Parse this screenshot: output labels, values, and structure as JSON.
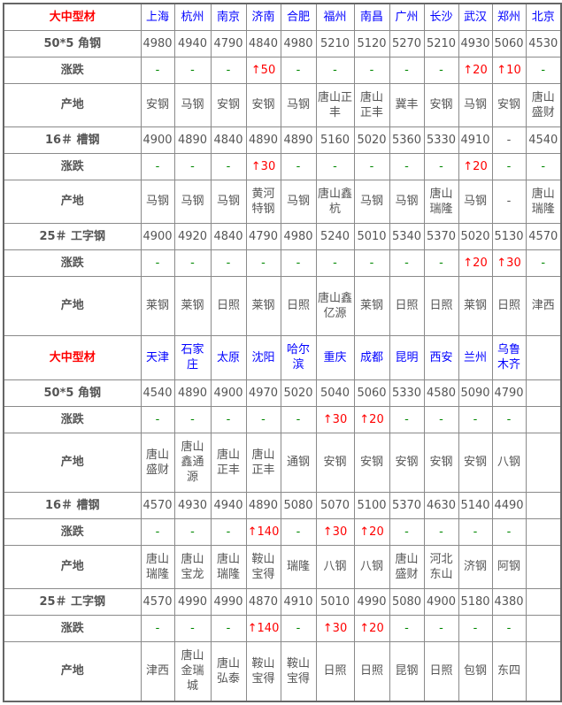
{
  "colors": {
    "city": "#0000ff",
    "corner": "#ff0000",
    "flat": "#008800",
    "up": "#ff0000",
    "text": "#555555"
  },
  "sections": [
    {
      "corner": "大中型材",
      "cities": [
        "上海",
        "杭州",
        "南京",
        "济南",
        "合肥",
        "福州",
        "南昌",
        "广州",
        "长沙",
        "武汉",
        "郑州",
        "北京"
      ],
      "products": [
        {
          "name": "50*5 角钢",
          "prices": [
            "4980",
            "4940",
            "4790",
            "4840",
            "4980",
            "5210",
            "5120",
            "5270",
            "5210",
            "4930",
            "5060",
            "4530"
          ],
          "change_label": "涨跌",
          "changes": [
            "-",
            "-",
            "-",
            "↑50",
            "-",
            "-",
            "-",
            "-",
            "-",
            "↑20",
            "↑10",
            "-"
          ],
          "origin_label": "产地",
          "origins": [
            "安钢",
            "马钢",
            "安钢",
            "安钢",
            "马钢",
            "唐山正丰",
            "唐山正丰",
            "冀丰",
            "安钢",
            "马钢",
            "安钢",
            "唐山盛财"
          ]
        },
        {
          "name": "16＃ 槽钢",
          "prices": [
            "4900",
            "4890",
            "4840",
            "4890",
            "4890",
            "5160",
            "5020",
            "5360",
            "5330",
            "4910",
            "-",
            "4540"
          ],
          "change_label": "涨跌",
          "changes": [
            "-",
            "-",
            "-",
            "↑30",
            "-",
            "-",
            "-",
            "-",
            "-",
            "↑20",
            "-",
            "-"
          ],
          "origin_label": "产地",
          "origins": [
            "马钢",
            "马钢",
            "马钢",
            "黄河特钢",
            "马钢",
            "唐山鑫杭",
            "马钢",
            "马钢",
            "唐山瑞隆",
            "马钢",
            "-",
            "唐山瑞隆"
          ]
        },
        {
          "name": "25＃ 工字钢",
          "prices": [
            "4900",
            "4920",
            "4840",
            "4790",
            "4980",
            "5240",
            "5010",
            "5340",
            "5370",
            "5020",
            "5130",
            "4570"
          ],
          "change_label": "涨跌",
          "changes": [
            "-",
            "-",
            "-",
            "-",
            "-",
            "-",
            "-",
            "-",
            "-",
            "↑20",
            "↑30",
            "-"
          ],
          "origin_label": "产地",
          "origins": [
            "莱钢",
            "莱钢",
            "日照",
            "莱钢",
            "日照",
            "唐山鑫亿源",
            "莱钢",
            "日照",
            "日照",
            "莱钢",
            "日照",
            "津西"
          ]
        }
      ]
    },
    {
      "corner": "大中型材",
      "cities": [
        "天津",
        "石家庄",
        "太原",
        "沈阳",
        "哈尔滨",
        "重庆",
        "成都",
        "昆明",
        "西安",
        "兰州",
        "乌鲁木齐",
        ""
      ],
      "products": [
        {
          "name": "50*5 角钢",
          "prices": [
            "4540",
            "4890",
            "4900",
            "4970",
            "5020",
            "5040",
            "5060",
            "5330",
            "4580",
            "5090",
            "4790",
            ""
          ],
          "change_label": "涨跌",
          "changes": [
            "-",
            "-",
            "-",
            "-",
            "-",
            "↑30",
            "↑20",
            "-",
            "-",
            "-",
            "-",
            ""
          ],
          "origin_label": "产地",
          "origins": [
            "唐山盛财",
            "唐山鑫通源",
            "唐山正丰",
            "唐山正丰",
            "通钢",
            "安钢",
            "安钢",
            "安钢",
            "安钢",
            "安钢",
            "八钢",
            ""
          ]
        },
        {
          "name": "16＃ 槽钢",
          "prices": [
            "4570",
            "4930",
            "4940",
            "4890",
            "5080",
            "5070",
            "5100",
            "5370",
            "4630",
            "5140",
            "4490",
            ""
          ],
          "change_label": "涨跌",
          "changes": [
            "-",
            "-",
            "-",
            "↑140",
            "-",
            "↑30",
            "↑20",
            "-",
            "-",
            "-",
            "-",
            ""
          ],
          "origin_label": "产地",
          "origins": [
            "唐山瑞隆",
            "唐山宝龙",
            "唐山瑞隆",
            "鞍山宝得",
            "瑞隆",
            "八钢",
            "八钢",
            "唐山盛财",
            "河北东山",
            "济钢",
            "阿钢",
            ""
          ]
        },
        {
          "name": "25＃ 工字钢",
          "prices": [
            "4570",
            "4990",
            "4990",
            "4870",
            "4910",
            "5010",
            "4990",
            "5080",
            "4900",
            "5180",
            "4380",
            ""
          ],
          "change_label": "涨跌",
          "changes": [
            "-",
            "-",
            "-",
            "↑140",
            "-",
            "↑30",
            "↑20",
            "-",
            "-",
            "-",
            "-",
            ""
          ],
          "origin_label": "产地",
          "origins": [
            "津西",
            "唐山金瑞城",
            "唐山弘泰",
            "鞍山宝得",
            "鞍山宝得",
            "日照",
            "日照",
            "昆钢",
            "日照",
            "包钢",
            "东四",
            ""
          ]
        }
      ]
    }
  ]
}
